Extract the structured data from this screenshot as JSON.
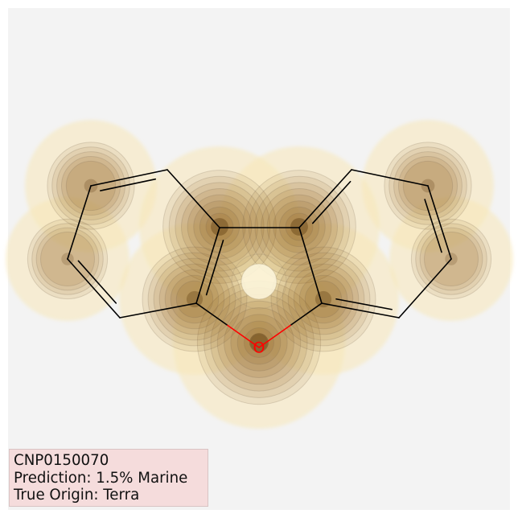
{
  "molecule": {
    "id": "CNP0150070",
    "prediction_label": "Prediction: 1.5% Marine",
    "origin_label": "True Origin: Terra",
    "heteroatom_label": "O"
  },
  "colors": {
    "background": "#f3f3f3",
    "info_box": "#f5dcdc",
    "bond": "#000000",
    "oxygen": "#ff0000",
    "heat_high": "#4a2a00",
    "heat_low": "#f7e8b8"
  }
}
